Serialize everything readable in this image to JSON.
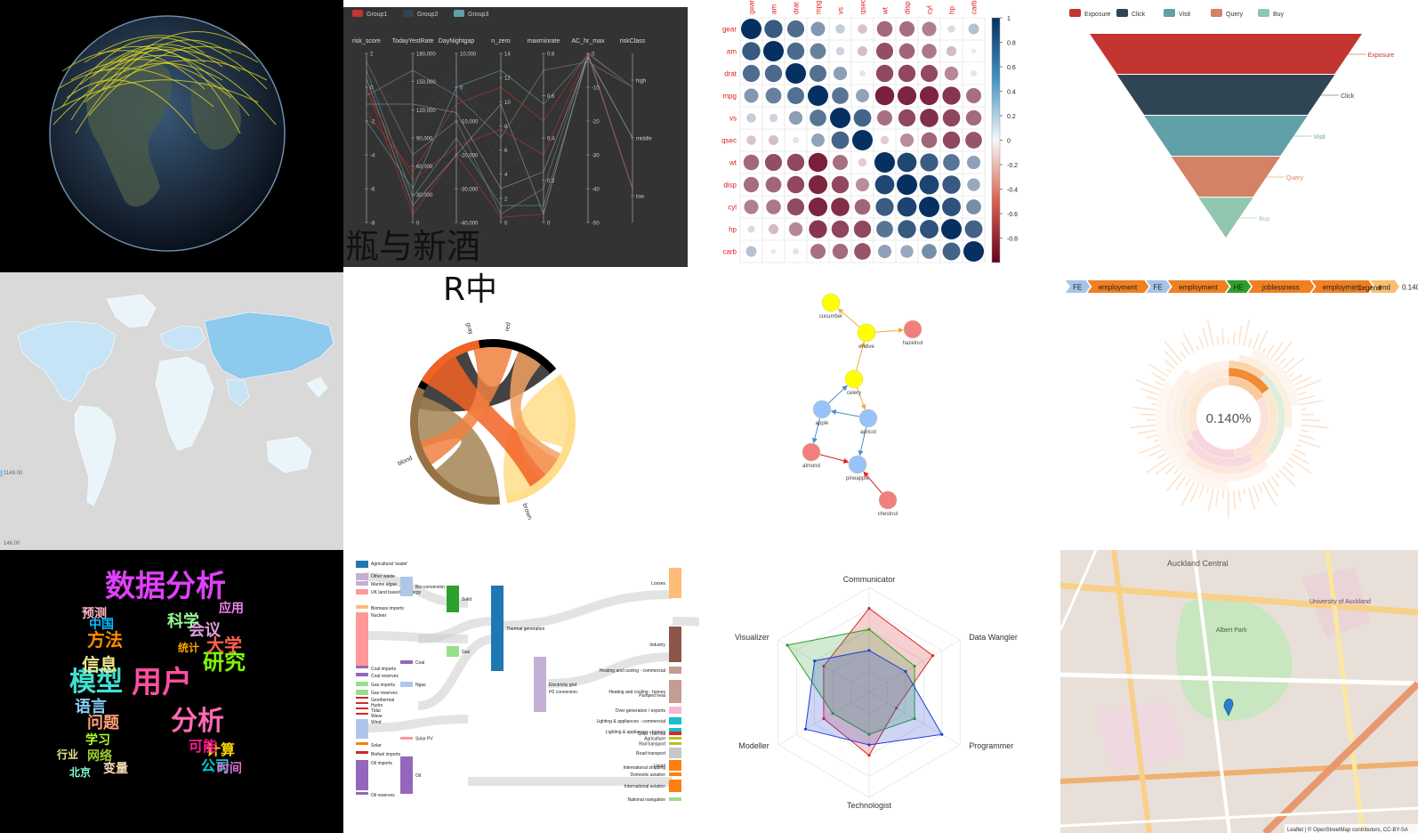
{
  "overlay": {
    "title": "瓶与新酒",
    "subtitle": "R中"
  },
  "chart_data": [
    {
      "id": "globe",
      "type": "other",
      "note_lines": "yellow arcs over a 3D earth globe"
    },
    {
      "id": "parallel",
      "type": "line",
      "legend": [
        "Group1",
        "Group2",
        "Group3"
      ],
      "colors": [
        "#c23531",
        "#2f4554",
        "#61a0a8"
      ],
      "axes": [
        {
          "name": "risk_score",
          "ticks": [
            "2",
            "0",
            "-2",
            "-4",
            "-6",
            "-8"
          ]
        },
        {
          "name": "TodayYestRate",
          "ticks": [
            "180,000",
            "150,000",
            "120,000",
            "90,000",
            "60,000",
            "30,000",
            "0"
          ]
        },
        {
          "name": "DayNightgap",
          "ticks": [
            "10,000",
            "0",
            "-10,000",
            "-20,000",
            "-30,000",
            "-40,000"
          ]
        },
        {
          "name": "n_zero",
          "ticks": [
            "14",
            "12",
            "10",
            "8",
            "6",
            "4",
            "2",
            "0"
          ]
        },
        {
          "name": "maxminrate",
          "ticks": [
            "0.8",
            "0.6",
            "0.4",
            "0.2",
            "0"
          ]
        },
        {
          "name": "AC_hr_max",
          "ticks": [
            "0",
            "-10",
            "-20",
            "-30",
            "-40",
            "-50"
          ]
        },
        {
          "name": "riskClass",
          "ticks": [
            "high",
            "middle",
            "low"
          ]
        }
      ]
    },
    {
      "id": "correlation",
      "type": "heatmap",
      "variables": [
        "gear",
        "am",
        "drat",
        "mpg",
        "vs",
        "qsec",
        "wt",
        "disp",
        "cyl",
        "hp",
        "carb"
      ],
      "matrix": [
        [
          1.0,
          0.79,
          0.7,
          0.48,
          0.21,
          -0.21,
          -0.58,
          -0.56,
          -0.49,
          -0.13,
          0.27
        ],
        [
          0.79,
          1.0,
          0.71,
          0.6,
          0.17,
          -0.23,
          -0.69,
          -0.59,
          -0.52,
          -0.24,
          0.06
        ],
        [
          0.7,
          0.71,
          1.0,
          0.68,
          0.44,
          0.09,
          -0.71,
          -0.71,
          -0.7,
          -0.45,
          -0.09
        ],
        [
          0.48,
          0.6,
          0.68,
          1.0,
          0.66,
          0.42,
          -0.87,
          -0.85,
          -0.85,
          -0.78,
          -0.55
        ],
        [
          0.21,
          0.17,
          0.44,
          0.66,
          1.0,
          0.74,
          -0.55,
          -0.71,
          -0.81,
          -0.72,
          -0.57
        ],
        [
          -0.21,
          -0.23,
          0.09,
          0.42,
          0.74,
          1.0,
          -0.17,
          -0.43,
          -0.59,
          -0.71,
          -0.66
        ],
        [
          -0.58,
          -0.69,
          -0.71,
          -0.87,
          -0.55,
          -0.17,
          1.0,
          0.89,
          0.78,
          0.66,
          0.43
        ],
        [
          -0.56,
          -0.59,
          -0.71,
          -0.85,
          -0.71,
          -0.43,
          0.89,
          1.0,
          0.9,
          0.79,
          0.39
        ],
        [
          -0.49,
          -0.52,
          -0.7,
          -0.85,
          -0.81,
          -0.59,
          0.78,
          0.9,
          1.0,
          0.83,
          0.53
        ],
        [
          -0.13,
          -0.24,
          -0.45,
          -0.78,
          -0.72,
          -0.71,
          0.66,
          0.79,
          0.83,
          1.0,
          0.75
        ],
        [
          0.27,
          0.06,
          -0.09,
          -0.55,
          -0.57,
          -0.66,
          0.43,
          0.39,
          0.53,
          0.75,
          1.0
        ]
      ],
      "colorbar_ticks": [
        "1",
        "0.8",
        "0.6",
        "0.4",
        "0.2",
        "0",
        "-0.2",
        "-0.4",
        "-0.6",
        "-0.8"
      ],
      "colorbar_values": [
        1,
        0.8,
        0.6,
        0.4,
        0.2,
        0,
        -0.2,
        -0.4,
        -0.6,
        -0.8
      ],
      "colors": {
        "positive": "#053061",
        "negative": "#67001f",
        "label": "#e32020"
      }
    },
    {
      "id": "funnel",
      "type": "bar",
      "categories": [
        "Exposure",
        "Click",
        "Visit",
        "Query",
        "Buy"
      ],
      "values": [
        100,
        80,
        60,
        40,
        20
      ],
      "colors": [
        "#c23531",
        "#2f4554",
        "#61a0a8",
        "#d48265",
        "#91c7ae"
      ]
    },
    {
      "id": "worldmap",
      "type": "other",
      "scale_labels": [
        "1149.00",
        "146.00"
      ]
    },
    {
      "id": "chord",
      "type": "other",
      "groups": [
        "red",
        "brown",
        "blond",
        "gray"
      ],
      "colors": [
        "#000000",
        "#ffdd89",
        "#957244",
        "#f26223"
      ]
    },
    {
      "id": "network",
      "type": "other",
      "nodes": [
        {
          "name": "cucumber",
          "color": "#ffff00"
        },
        {
          "name": "endive",
          "color": "#ffff00"
        },
        {
          "name": "hazelnut",
          "color": "#f08080"
        },
        {
          "name": "celery",
          "color": "#ffff00"
        },
        {
          "name": "apple",
          "color": "#97c2fc"
        },
        {
          "name": "apricot",
          "color": "#97c2fc"
        },
        {
          "name": "almond",
          "color": "#f08080"
        },
        {
          "name": "pineapple",
          "color": "#97c2fc"
        },
        {
          "name": "chestnut",
          "color": "#f08080"
        }
      ]
    },
    {
      "id": "sunburst",
      "type": "pie",
      "breadcrumb": [
        "FE",
        "employment",
        "FE",
        "employment",
        "HE",
        "joblessness",
        "employment",
        "end"
      ],
      "percentage": "0.140%",
      "legend_label": "Legend"
    },
    {
      "id": "wordcloud",
      "type": "other",
      "words": [
        {
          "text": "数据分析",
          "color": "#e040fb"
        },
        {
          "text": "用户",
          "color": "#ff4fa0"
        },
        {
          "text": "模型",
          "color": "#40e0d0"
        },
        {
          "text": "分析",
          "color": "#ff69b4"
        },
        {
          "text": "研究",
          "color": "#7cfc00"
        },
        {
          "text": "信息",
          "color": "#f0e68c"
        },
        {
          "text": "方法",
          "color": "#ff8c00"
        },
        {
          "text": "大学",
          "color": "#ff6347"
        },
        {
          "text": "会议",
          "color": "#dda0dd"
        },
        {
          "text": "科学",
          "color": "#98fb98"
        },
        {
          "text": "语言",
          "color": "#87cefa"
        },
        {
          "text": "问题",
          "color": "#ffa07a"
        },
        {
          "text": "学习",
          "color": "#adff2f"
        },
        {
          "text": "计算",
          "color": "#ffd700"
        },
        {
          "text": "可能",
          "color": "#ff1493"
        },
        {
          "text": "公司",
          "color": "#00ced1"
        },
        {
          "text": "时间",
          "color": "#da70d6"
        },
        {
          "text": "网络",
          "color": "#9acd32"
        },
        {
          "text": "变量",
          "color": "#f5deb3"
        },
        {
          "text": "预测",
          "color": "#ffb6c1"
        },
        {
          "text": "中国",
          "color": "#00bfff"
        },
        {
          "text": "应用",
          "color": "#ee82ee"
        },
        {
          "text": "统计",
          "color": "#ffa500"
        },
        {
          "text": "北京",
          "color": "#7fffd4"
        },
        {
          "text": "行业",
          "color": "#f0e68c"
        }
      ]
    },
    {
      "id": "sankey",
      "type": "other",
      "left_labels": [
        "Agricultural 'waste'",
        "Other waste",
        "Marine algae",
        "UK land based bioenergy",
        "Biomass imports",
        "Nuclear",
        "Coal imports",
        "Coal reserves",
        "Gas imports",
        "Gas reserves",
        "Geothermal",
        "Hydro",
        "Tidal",
        "Wave",
        "Wind",
        "Solar",
        "Biofuel imports",
        "Oil imports",
        "Oil reserves"
      ],
      "middle_labels": [
        "Bio-conversion",
        "Solid",
        "Gas",
        "Coal",
        "Ngas",
        "Solar PV",
        "Oil",
        "Thermal generation",
        "Electricity grid",
        "H2 conversion"
      ],
      "right_labels": [
        "Losses",
        "Industry",
        "Heating and cooling - commercial",
        "Heating and cooling - homes",
        "Over generation / exports",
        "Lighting & appliances - commercial",
        "Lighting & appliances - homes",
        "Agriculture",
        "Rail transport",
        "Road transport",
        "International shipping",
        "Domestic aviation",
        "International aviation",
        "National navigation",
        "Liquid",
        "Pumped heat",
        "Solar Thermal"
      ]
    },
    {
      "id": "radar",
      "type": "other",
      "axes": [
        "Communicator",
        "Data Wangler",
        "Programmer",
        "Technologist",
        "Modeller",
        "Visualizer"
      ],
      "max": 10,
      "series": [
        {
          "color": "#d62728",
          "values": [
            8,
            7,
            3,
            6,
            5,
            5
          ]
        },
        {
          "color": "#2ca02c",
          "values": [
            6,
            5,
            5,
            4,
            4,
            9
          ]
        },
        {
          "color": "#1f3ed6",
          "values": [
            4,
            4,
            8,
            5,
            7,
            6
          ]
        }
      ]
    },
    {
      "id": "leaflet_map",
      "type": "other",
      "labels": [
        "Auckland Central",
        "Albert Park",
        "University of Auckland",
        "Leaflet | © OpenStreetMap contributors, CC-BY-SA"
      ]
    }
  ]
}
